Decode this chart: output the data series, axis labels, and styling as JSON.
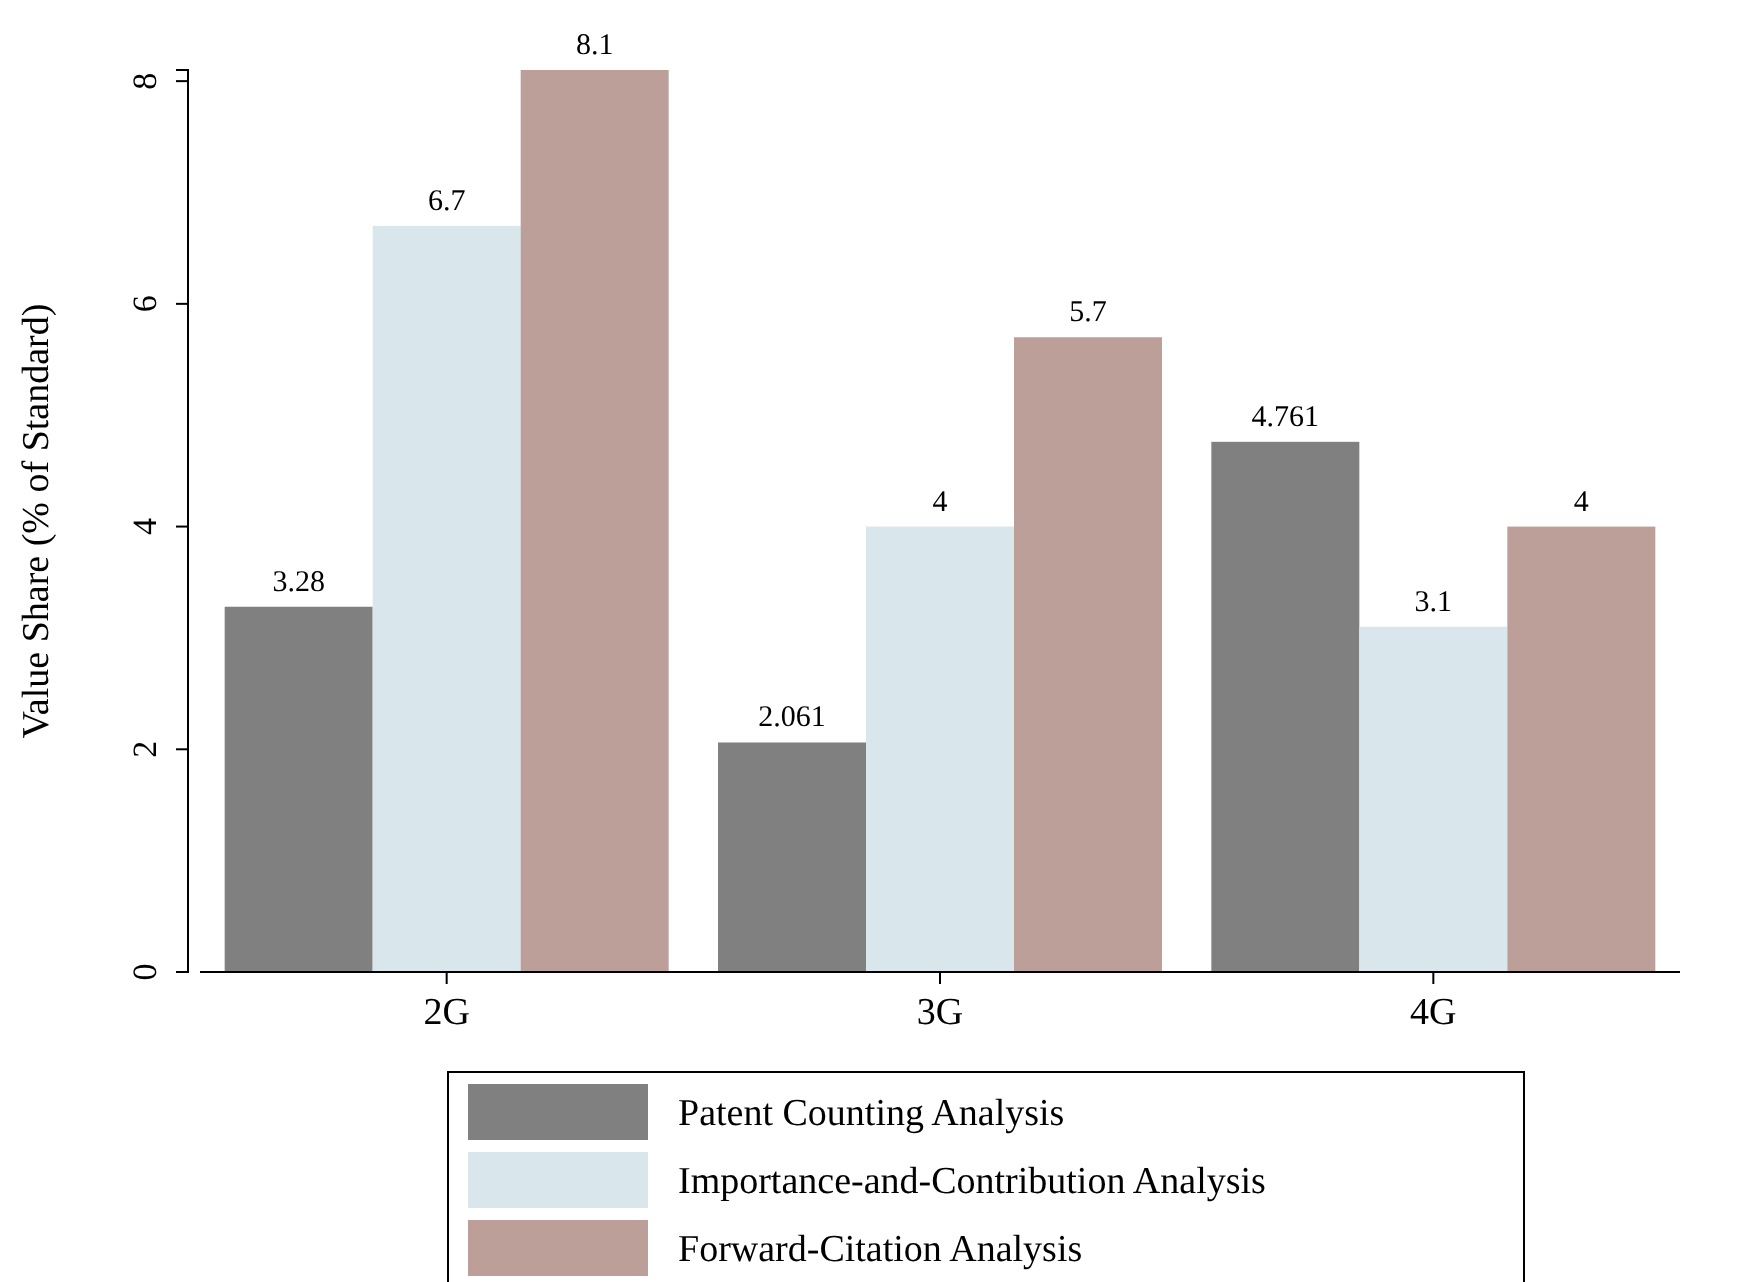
{
  "chart_data": {
    "type": "bar",
    "ylabel": "Value Share (% of Standard)",
    "categories": [
      "2G",
      "3G",
      "4G"
    ],
    "series": [
      {
        "name": "Patent Counting Analysis",
        "color": "#808080",
        "values": [
          3.28,
          2.061,
          4.761
        ]
      },
      {
        "name": "Importance-and-Contribution Analysis",
        "color": "#d9e6ec",
        "values": [
          6.7,
          4,
          3.1
        ]
      },
      {
        "name": "Forward-Citation Analysis",
        "color": "#bc9f98",
        "values": [
          8.1,
          5.7,
          4
        ]
      }
    ],
    "ylim": [
      0,
      8.1
    ],
    "yticks": [
      0,
      2,
      4,
      6,
      8
    ],
    "data_labels": true,
    "grid": false,
    "legend": "bottom"
  }
}
